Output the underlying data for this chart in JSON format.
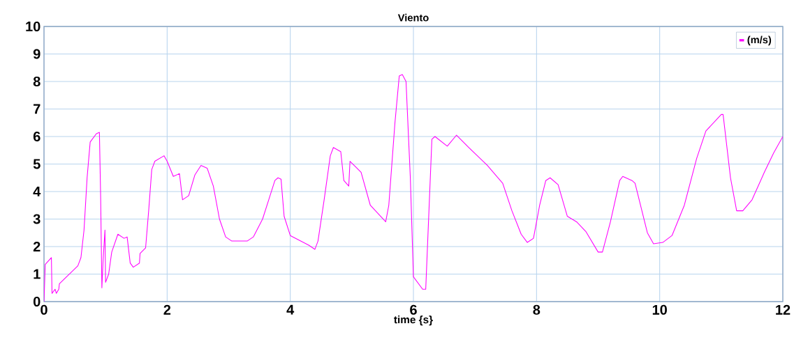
{
  "chart_data": {
    "type": "line",
    "title": "Viento",
    "xlabel": "time {s}",
    "xlim": [
      0,
      12
    ],
    "ylim": [
      0,
      10
    ],
    "xticks": [
      0,
      2,
      4,
      6,
      8,
      10,
      12
    ],
    "yticks": [
      0,
      1,
      2,
      3,
      4,
      5,
      6,
      7,
      8,
      9,
      10
    ],
    "grid": true,
    "legend": "top right",
    "series": [
      {
        "name": "(m/s)",
        "color": "#ff00ff",
        "x": [
          0,
          0.02,
          0.12,
          0.13,
          0.18,
          0.2,
          0.24,
          0.25,
          0.55,
          0.6,
          0.65,
          0.7,
          0.75,
          0.85,
          0.9,
          0.92,
          0.94,
          0.96,
          0.99,
          1.0,
          1.05,
          1.1,
          1.2,
          1.3,
          1.35,
          1.4,
          1.45,
          1.55,
          1.56,
          1.65,
          1.7,
          1.75,
          1.8,
          1.95,
          2.0,
          2.1,
          2.2,
          2.25,
          2.35,
          2.45,
          2.55,
          2.65,
          2.75,
          2.85,
          2.95,
          3.05,
          3.3,
          3.4,
          3.55,
          3.65,
          3.75,
          3.8,
          3.85,
          3.9,
          4.0,
          4.3,
          4.4,
          4.45,
          4.55,
          4.65,
          4.7,
          4.82,
          4.87,
          4.95,
          4.97,
          5.15,
          5.3,
          5.55,
          5.6,
          5.7,
          5.77,
          5.82,
          5.88,
          5.95,
          6.0,
          6.15,
          6.2,
          6.3,
          6.35,
          6.55,
          6.7,
          6.9,
          7.2,
          7.45,
          7.6,
          7.75,
          7.85,
          7.95,
          8.05,
          8.15,
          8.22,
          8.35,
          8.5,
          8.65,
          8.8,
          9.0,
          9.07,
          9.2,
          9.35,
          9.4,
          9.55,
          9.6,
          9.8,
          9.9,
          10.05,
          10.2,
          10.4,
          10.6,
          10.75,
          11.0,
          11.03,
          11.15,
          11.25,
          11.35,
          11.5,
          11.7,
          11.85,
          12.0
        ],
        "values": [
          0,
          1.35,
          1.6,
          0.3,
          0.45,
          0.3,
          0.45,
          0.65,
          1.3,
          1.6,
          2.6,
          4.5,
          5.8,
          6.1,
          6.15,
          3.8,
          0.5,
          1.5,
          2.6,
          0.7,
          1.0,
          1.8,
          2.45,
          2.3,
          2.35,
          1.4,
          1.25,
          1.4,
          1.75,
          1.95,
          3.3,
          4.8,
          5.1,
          5.3,
          5.1,
          4.55,
          4.65,
          3.7,
          3.85,
          4.6,
          4.95,
          4.85,
          4.2,
          3.0,
          2.35,
          2.2,
          2.2,
          2.35,
          3.0,
          3.7,
          4.4,
          4.5,
          4.45,
          3.1,
          2.4,
          2.05,
          1.9,
          2.2,
          3.7,
          5.3,
          5.6,
          5.45,
          4.4,
          4.2,
          5.1,
          4.7,
          3.5,
          2.9,
          3.5,
          6.5,
          8.2,
          8.25,
          8.0,
          4.5,
          0.9,
          0.45,
          0.45,
          5.9,
          6.0,
          5.65,
          6.05,
          5.6,
          4.95,
          4.3,
          3.3,
          2.45,
          2.15,
          2.3,
          3.5,
          4.4,
          4.5,
          4.25,
          3.1,
          2.9,
          2.55,
          1.8,
          1.8,
          2.9,
          4.4,
          4.55,
          4.4,
          4.3,
          2.5,
          2.1,
          2.15,
          2.4,
          3.5,
          5.2,
          6.2,
          6.8,
          6.8,
          4.5,
          3.3,
          3.3,
          3.7,
          4.7,
          5.4,
          6.0
        ]
      }
    ]
  }
}
